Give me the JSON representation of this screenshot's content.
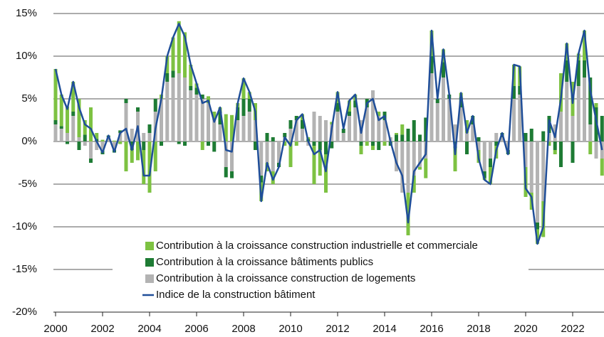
{
  "chart_data": {
    "type": "bar",
    "categories": [
      "2000",
      null,
      null,
      null,
      null,
      null,
      null,
      null,
      "2002",
      null,
      null,
      null,
      null,
      null,
      null,
      null,
      "2004",
      null,
      null,
      null,
      null,
      null,
      null,
      null,
      "2006",
      null,
      null,
      null,
      null,
      null,
      null,
      null,
      "2008",
      null,
      null,
      null,
      null,
      null,
      null,
      null,
      "2010",
      null,
      null,
      null,
      null,
      null,
      null,
      null,
      "2012",
      null,
      null,
      null,
      null,
      null,
      null,
      null,
      "2014",
      null,
      null,
      null,
      null,
      null,
      null,
      null,
      "2016",
      null,
      null,
      null,
      null,
      null,
      null,
      null,
      "2018",
      null,
      null,
      null,
      null,
      null,
      null,
      null,
      "2020",
      null,
      null,
      null,
      null,
      null,
      null,
      null,
      "2022",
      null,
      null,
      null,
      null,
      null
    ],
    "series": [
      {
        "name": "Contribution à la croissance construction industrielle et commerciale",
        "type": "bar",
        "color": "#7dc242",
        "values": [
          6.0,
          3.7,
          3.1,
          3.5,
          4.5,
          1.7,
          4.0,
          0.7,
          0.2,
          0.0,
          0.1,
          -0.3,
          -3.5,
          -1.5,
          -2.2,
          -4.0,
          -6.0,
          -3.5,
          0.5,
          2.0,
          3.9,
          6.1,
          5.3,
          2.5,
          0.5,
          -1.0,
          0.8,
          1.0,
          0.5,
          3.2,
          3.1,
          0.5,
          2.4,
          0.8,
          2.0,
          -2.2,
          -1.0,
          -1.5,
          0.0,
          -0.5,
          -3.0,
          -0.5,
          0.7,
          0.2,
          -4.5,
          -3.0,
          -4.5,
          0.3,
          1.3,
          0.0,
          1.3,
          0.7,
          -1.0,
          -0.5,
          -0.5,
          0.5,
          -0.5,
          0.0,
          0.2,
          1.2,
          -5.0,
          -2.0,
          -0.3,
          -2.3,
          3.0,
          0.0,
          1.5,
          0.0,
          -2.7,
          0.5,
          1.5,
          0.0,
          -1.5,
          -0.2,
          -2.0,
          -1.5,
          0.0,
          0.0,
          2.5,
          2.3,
          -3.5,
          -2.0,
          -1.7,
          -4.2,
          -0.5,
          -0.5,
          4.5,
          2.0,
          4.0,
          0.8,
          3.5,
          -1.5,
          0.5,
          -2.0
        ]
      },
      {
        "name": "Contribution à la croissance bâtiments publics",
        "type": "bar",
        "color": "#1e7b34",
        "values": [
          0.5,
          0.3,
          -0.3,
          0.5,
          -1.0,
          0.8,
          -0.5,
          0.3,
          -0.5,
          0.2,
          -0.3,
          0.3,
          0.5,
          -1.0,
          0.5,
          -1.0,
          1.0,
          1.5,
          -0.5,
          1.0,
          0.8,
          -0.3,
          -0.5,
          0.5,
          0.8,
          0.5,
          -0.5,
          -1.2,
          1.5,
          -1.2,
          -0.8,
          1.5,
          2.0,
          1.5,
          -1.0,
          -0.8,
          1.0,
          0.5,
          -0.5,
          0.5,
          1.0,
          0.5,
          1.0,
          0.3,
          -0.5,
          -1.0,
          -1.5,
          -0.8,
          1.0,
          0.5,
          0.5,
          0.8,
          -0.5,
          1.0,
          -0.5,
          -1.0,
          1.0,
          -0.5,
          0.8,
          0.8,
          1.5,
          2.5,
          0.8,
          2.8,
          2.0,
          0.5,
          1.8,
          0.5,
          -0.8,
          1.2,
          -1.5,
          1.0,
          0.5,
          -0.8,
          -1.0,
          -0.5,
          0.5,
          -0.5,
          1.5,
          1.0,
          1.0,
          1.5,
          -0.8,
          1.2,
          2.0,
          -1.0,
          -3.0,
          2.5,
          -2.5,
          3.0,
          2.0,
          5.5,
          4.0,
          3.0
        ]
      },
      {
        "name": "Contribution à la croissance construction de logements",
        "type": "bar",
        "color": "#b3b3b3",
        "values": [
          2.0,
          1.5,
          1.0,
          3.0,
          0.5,
          -0.5,
          -2.0,
          -1.0,
          -1.0,
          0.5,
          -1.0,
          1.0,
          4.5,
          1.5,
          3.5,
          1.0,
          1.0,
          3.5,
          5.0,
          7.0,
          7.5,
          8.0,
          7.5,
          6.0,
          5.5,
          5.0,
          4.5,
          2.5,
          2.0,
          -3.0,
          -3.5,
          2.5,
          3.0,
          3.5,
          2.5,
          -4.0,
          -2.5,
          -3.5,
          -2.5,
          0.5,
          1.5,
          2.5,
          1.5,
          -0.5,
          3.5,
          3.0,
          2.5,
          2.0,
          3.5,
          1.0,
          3.0,
          4.0,
          2.5,
          4.0,
          6.0,
          3.0,
          2.5,
          0.5,
          -3.5,
          -6.0,
          -6.0,
          -4.0,
          -3.0,
          -2.0,
          8.0,
          4.5,
          7.5,
          5.0,
          2.0,
          4.0,
          1.0,
          2.0,
          -1.0,
          -3.5,
          -2.0,
          1.0,
          0.5,
          -1.0,
          5.0,
          5.5,
          -3.0,
          -6.0,
          -9.5,
          -7.0,
          1.0,
          2.0,
          3.5,
          7.0,
          3.0,
          6.5,
          7.5,
          2.0,
          -2.0,
          -2.0
        ]
      },
      {
        "name": "Indice de la construction bâtiment",
        "type": "line",
        "color": "#1f4e99",
        "values": [
          8.5,
          5.5,
          3.8,
          7.0,
          4.0,
          2.0,
          1.5,
          0.0,
          -1.3,
          0.7,
          -1.2,
          1.0,
          1.5,
          -1.0,
          1.8,
          -4.0,
          -4.0,
          1.5,
          5.0,
          10.0,
          12.2,
          13.8,
          12.3,
          9.0,
          6.8,
          4.5,
          4.8,
          2.3,
          4.0,
          -1.0,
          -1.2,
          4.5,
          7.4,
          5.8,
          3.5,
          -7.0,
          -2.5,
          -4.5,
          -3.0,
          0.5,
          -0.5,
          2.5,
          3.2,
          0.0,
          -1.5,
          -1.0,
          -3.5,
          1.5,
          5.8,
          1.5,
          4.8,
          5.5,
          1.0,
          4.5,
          5.0,
          2.5,
          3.0,
          0.0,
          -2.5,
          -4.0,
          -9.5,
          -3.5,
          -2.5,
          -1.5,
          13.0,
          5.0,
          10.8,
          5.5,
          -1.5,
          5.7,
          1.0,
          3.0,
          -2.0,
          -4.5,
          -5.0,
          -1.0,
          1.0,
          -1.5,
          9.0,
          8.8,
          -5.5,
          -6.5,
          -12.0,
          -10.0,
          2.5,
          0.5,
          5.0,
          11.5,
          4.5,
          10.3,
          13.0,
          6.0,
          2.5,
          -1.0
        ]
      }
    ],
    "ylim": [
      -20,
      15
    ],
    "yticks": [
      {
        "value": -20,
        "label": "-20%"
      },
      {
        "value": -15,
        "label": "-15%"
      },
      {
        "value": -10,
        "label": "-10%"
      },
      {
        "value": -5,
        "label": "-5%"
      },
      {
        "value": 0,
        "label": "0%"
      },
      {
        "value": 5,
        "label": "5%"
      },
      {
        "value": 10,
        "label": "10%"
      },
      {
        "value": 15,
        "label": "15%"
      }
    ],
    "grid": true,
    "legend": "bottom"
  }
}
